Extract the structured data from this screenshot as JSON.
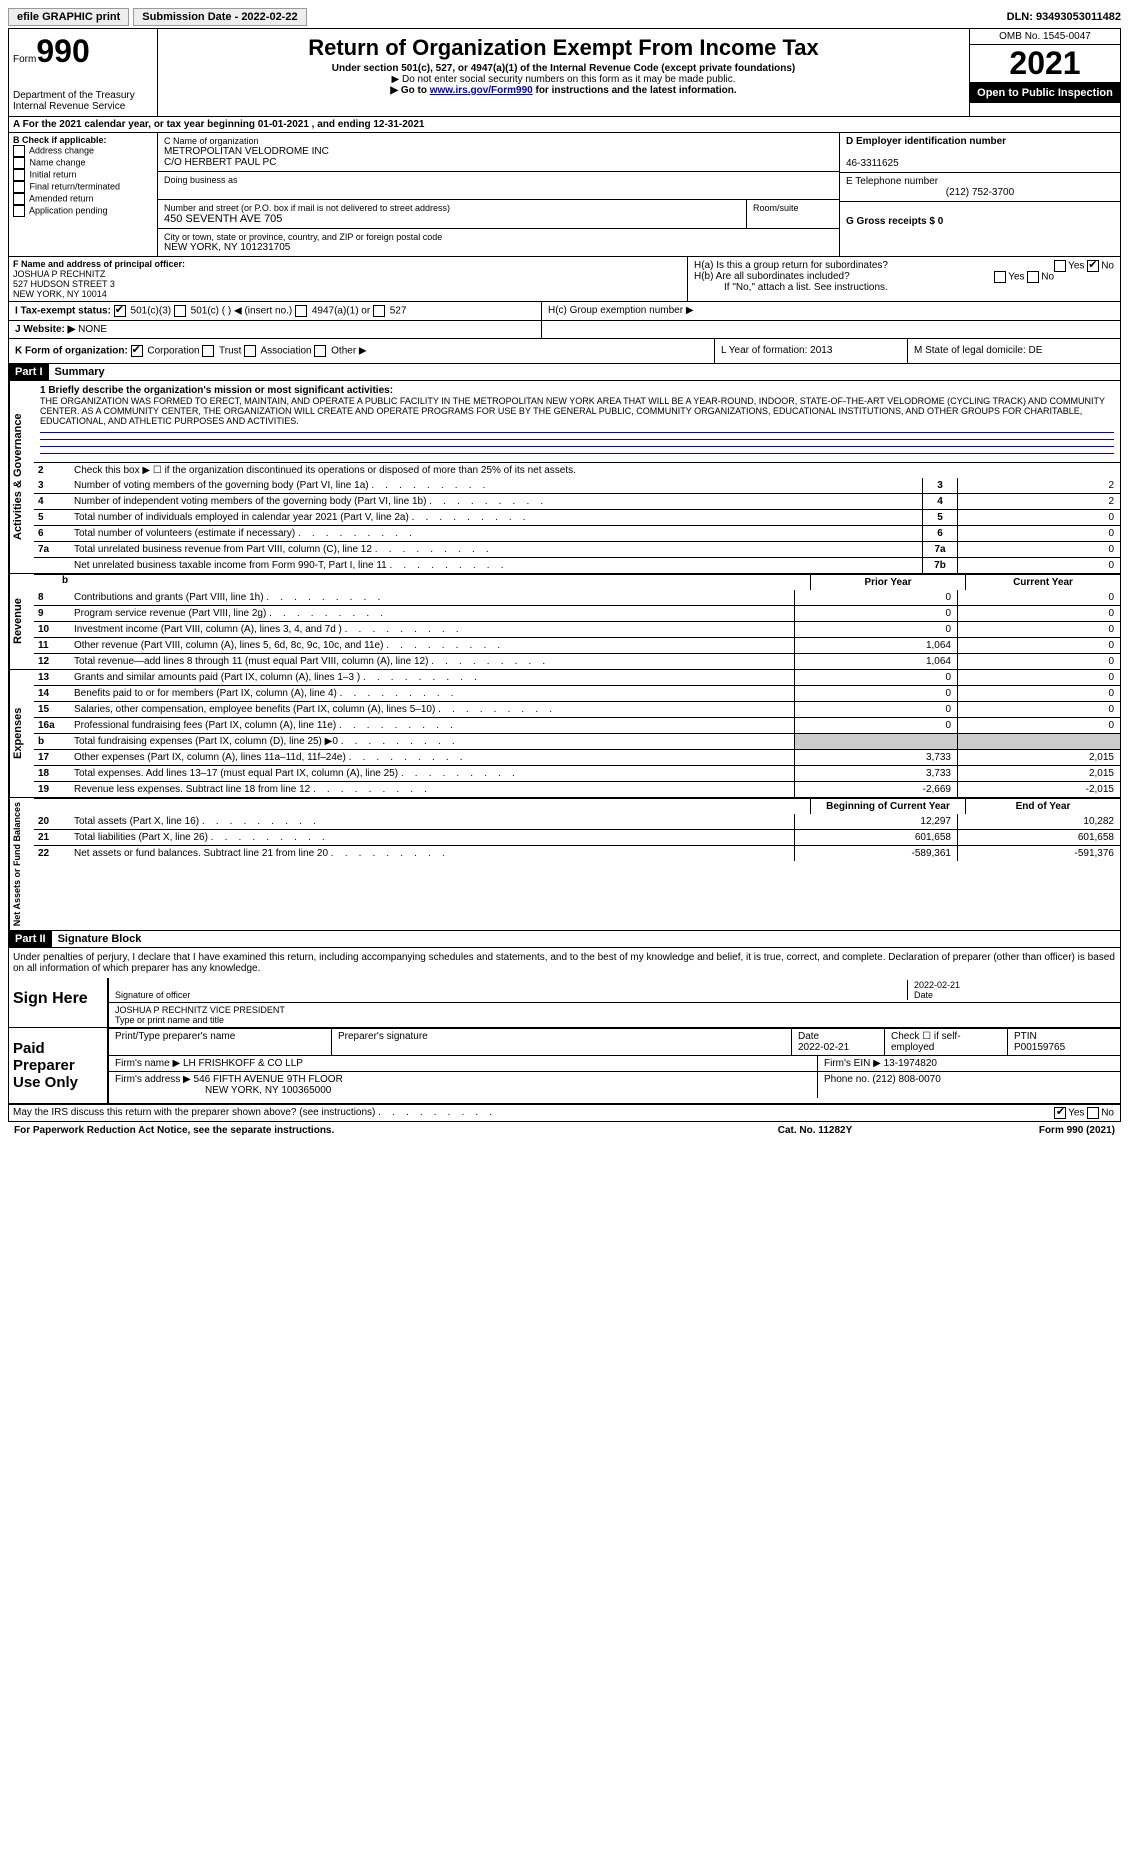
{
  "topbar": {
    "efile": "efile GRAPHIC print",
    "submission_label": "Submission Date - 2022-02-22",
    "dln_label": "DLN: 93493053011482"
  },
  "header": {
    "form_word": "Form",
    "form_num": "990",
    "dept": "Department of the Treasury",
    "irs": "Internal Revenue Service",
    "title": "Return of Organization Exempt From Income Tax",
    "sub1": "Under section 501(c), 527, or 4947(a)(1) of the Internal Revenue Code (except private foundations)",
    "sub2_prefix": "▶ Do not enter social security numbers on this form as it may be made public.",
    "sub3_prefix": "▶ Go to ",
    "sub3_link": "www.irs.gov/Form990",
    "sub3_suffix": " for instructions and the latest information.",
    "omb": "OMB No. 1545-0047",
    "year": "2021",
    "open": "Open to Public Inspection"
  },
  "rowA": "For the 2021 calendar year, or tax year beginning 01-01-2021    , and ending 12-31-2021",
  "boxB": {
    "label": "B Check if applicable:",
    "opts": [
      "Address change",
      "Name change",
      "Initial return",
      "Final return/terminated",
      "Amended return",
      "Application pending"
    ]
  },
  "boxC": {
    "label": "C Name of organization",
    "name": "METROPOLITAN VELODROME INC",
    "co": "C/O HERBERT PAUL PC",
    "dba_label": "Doing business as",
    "addr_label": "Number and street (or P.O. box if mail is not delivered to street address)",
    "room_label": "Room/suite",
    "addr": "450 SEVENTH AVE 705",
    "city_label": "City or town, state or province, country, and ZIP or foreign postal code",
    "city": "NEW YORK, NY  101231705"
  },
  "boxD": {
    "label": "D Employer identification number",
    "val": "46-3311625"
  },
  "boxE": {
    "label": "E Telephone number",
    "val": "(212) 752-3700"
  },
  "boxG": {
    "label": "G Gross receipts $ 0"
  },
  "boxF": {
    "label": "F Name and address of principal officer:",
    "name": "JOSHUA P RECHNITZ",
    "addr1": "527 HUDSON STREET 3",
    "addr2": "NEW YORK, NY  10014"
  },
  "boxH": {
    "ha": "H(a)  Is this a group return for subordinates?",
    "hb": "H(b)  Are all subordinates included?",
    "hb_note": "If \"No,\" attach a list. See instructions.",
    "hc": "H(c)  Group exemption number ▶",
    "yes": "Yes",
    "no": "No"
  },
  "rowI": {
    "label": "I  Tax-exempt status:",
    "opt1": "501(c)(3)",
    "opt2": "501(c) (  ) ◀ (insert no.)",
    "opt3": "4947(a)(1) or",
    "opt4": "527"
  },
  "rowJ": {
    "label": "J  Website: ▶",
    "val": "NONE"
  },
  "rowK": {
    "label": "K Form of organization:",
    "opts": [
      "Corporation",
      "Trust",
      "Association",
      "Other ▶"
    ]
  },
  "rowL": "L Year of formation: 2013",
  "rowM": "M State of legal domicile: DE",
  "part1": {
    "header": "Part I",
    "title": "Summary",
    "line1_label": "1  Briefly describe the organization's mission or most significant activities:",
    "mission": "THE ORGANIZATION WAS FORMED TO ERECT, MAINTAIN, AND OPERATE A PUBLIC FACILITY IN THE METROPOLITAN NEW YORK AREA THAT WILL BE A YEAR-ROUND, INDOOR, STATE-OF-THE-ART VELODROME (CYCLING TRACK) AND COMMUNITY CENTER. AS A COMMUNITY CENTER, THE ORGANIZATION WILL CREATE AND OPERATE PROGRAMS FOR USE BY THE GENERAL PUBLIC, COMMUNITY ORGANIZATIONS, EDUCATIONAL INSTITUTIONS, AND OTHER GROUPS FOR CHARITABLE, EDUCATIONAL, AND ATHLETIC PURPOSES AND ACTIVITIES.",
    "line2": "Check this box ▶ ☐  if the organization discontinued its operations or disposed of more than 25% of its net assets.",
    "lines_gov": [
      {
        "n": "3",
        "t": "Number of voting members of the governing body (Part VI, line 1a)",
        "b": "3",
        "v": "2"
      },
      {
        "n": "4",
        "t": "Number of independent voting members of the governing body (Part VI, line 1b)",
        "b": "4",
        "v": "2"
      },
      {
        "n": "5",
        "t": "Total number of individuals employed in calendar year 2021 (Part V, line 2a)",
        "b": "5",
        "v": "0"
      },
      {
        "n": "6",
        "t": "Total number of volunteers (estimate if necessary)",
        "b": "6",
        "v": "0"
      },
      {
        "n": "7a",
        "t": "Total unrelated business revenue from Part VIII, column (C), line 12",
        "b": "7a",
        "v": "0"
      },
      {
        "n": "",
        "t": "Net unrelated business taxable income from Form 990-T, Part I, line 11",
        "b": "7b",
        "v": "0"
      }
    ],
    "col_prior": "Prior Year",
    "col_current": "Current Year",
    "col_begin": "Beginning of Current Year",
    "col_end": "End of Year",
    "revenue": [
      {
        "n": "8",
        "t": "Contributions and grants (Part VIII, line 1h)",
        "p": "0",
        "c": "0"
      },
      {
        "n": "9",
        "t": "Program service revenue (Part VIII, line 2g)",
        "p": "0",
        "c": "0"
      },
      {
        "n": "10",
        "t": "Investment income (Part VIII, column (A), lines 3, 4, and 7d )",
        "p": "0",
        "c": "0"
      },
      {
        "n": "11",
        "t": "Other revenue (Part VIII, column (A), lines 5, 6d, 8c, 9c, 10c, and 11e)",
        "p": "1,064",
        "c": "0"
      },
      {
        "n": "12",
        "t": "Total revenue—add lines 8 through 11 (must equal Part VIII, column (A), line 12)",
        "p": "1,064",
        "c": "0"
      }
    ],
    "expenses": [
      {
        "n": "13",
        "t": "Grants and similar amounts paid (Part IX, column (A), lines 1–3 )",
        "p": "0",
        "c": "0"
      },
      {
        "n": "14",
        "t": "Benefits paid to or for members (Part IX, column (A), line 4)",
        "p": "0",
        "c": "0"
      },
      {
        "n": "15",
        "t": "Salaries, other compensation, employee benefits (Part IX, column (A), lines 5–10)",
        "p": "0",
        "c": "0"
      },
      {
        "n": "16a",
        "t": "Professional fundraising fees (Part IX, column (A), line 11e)",
        "p": "0",
        "c": "0"
      },
      {
        "n": "b",
        "t": "Total fundraising expenses (Part IX, column (D), line 25) ▶0",
        "p": "",
        "c": "",
        "grey": true
      },
      {
        "n": "17",
        "t": "Other expenses (Part IX, column (A), lines 11a–11d, 11f–24e)",
        "p": "3,733",
        "c": "2,015"
      },
      {
        "n": "18",
        "t": "Total expenses. Add lines 13–17 (must equal Part IX, column (A), line 25)",
        "p": "3,733",
        "c": "2,015"
      },
      {
        "n": "19",
        "t": "Revenue less expenses. Subtract line 18 from line 12",
        "p": "-2,669",
        "c": "-2,015"
      }
    ],
    "netassets": [
      {
        "n": "20",
        "t": "Total assets (Part X, line 16)",
        "p": "12,297",
        "c": "10,282"
      },
      {
        "n": "21",
        "t": "Total liabilities (Part X, line 26)",
        "p": "601,658",
        "c": "601,658"
      },
      {
        "n": "22",
        "t": "Net assets or fund balances. Subtract line 21 from line 20",
        "p": "-589,361",
        "c": "-591,376"
      }
    ],
    "vert_gov": "Activities & Governance",
    "vert_rev": "Revenue",
    "vert_exp": "Expenses",
    "vert_net": "Net Assets or Fund Balances"
  },
  "part2": {
    "header": "Part II",
    "title": "Signature Block",
    "penalty": "Under penalties of perjury, I declare that I have examined this return, including accompanying schedules and statements, and to the best of my knowledge and belief, it is true, correct, and complete. Declaration of preparer (other than officer) is based on all information of which preparer has any knowledge.",
    "sign_here": "Sign Here",
    "sig_officer": "Signature of officer",
    "date": "Date",
    "date_val": "2022-02-21",
    "name_title": "JOSHUA P RECHNITZ  VICE PRESIDENT",
    "type_name": "Type or print name and title",
    "paid": "Paid Preparer Use Only",
    "prep_name_label": "Print/Type preparer's name",
    "prep_sig_label": "Preparer's signature",
    "prep_date_label": "Date",
    "prep_date": "2022-02-21",
    "check_self": "Check ☐ if self-employed",
    "ptin_label": "PTIN",
    "ptin": "P00159765",
    "firm_name_label": "Firm's name    ▶",
    "firm_name": "LH FRISHKOFF & CO LLP",
    "firm_ein_label": "Firm's EIN ▶",
    "firm_ein": "13-1974820",
    "firm_addr_label": "Firm's address ▶",
    "firm_addr1": "546 FIFTH AVENUE 9TH FLOOR",
    "firm_addr2": "NEW YORK, NY  100365000",
    "phone_label": "Phone no.",
    "phone": "(212) 808-0070",
    "discuss": "May the IRS discuss this return with the preparer shown above? (see instructions)",
    "yes": "Yes",
    "no": "No"
  },
  "footer": {
    "left": "For Paperwork Reduction Act Notice, see the separate instructions.",
    "center": "Cat. No. 11282Y",
    "right": "Form 990 (2021)"
  }
}
